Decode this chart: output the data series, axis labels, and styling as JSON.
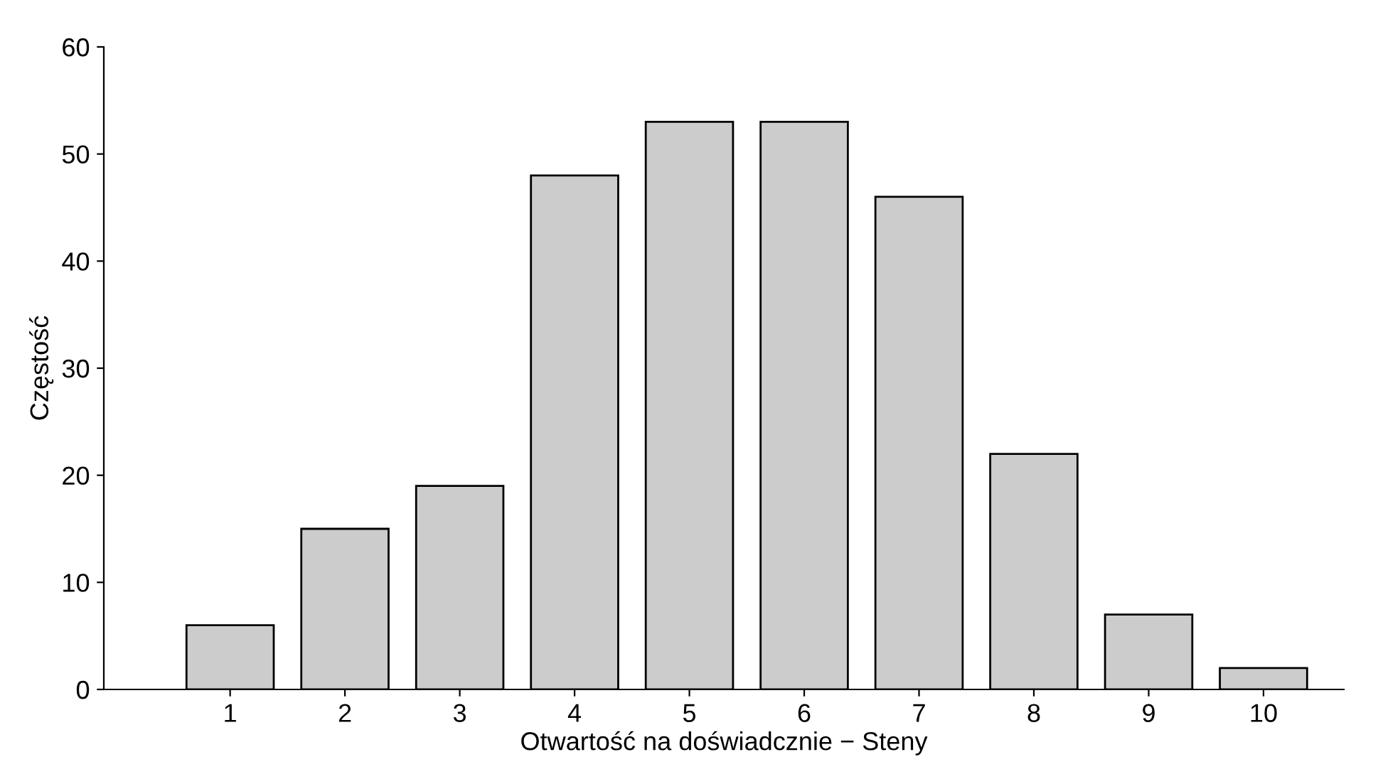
{
  "chart_data": {
    "type": "bar",
    "xlabel": "Otwartość na doświadcznie − Steny",
    "ylabel": "Częstość",
    "categories": [
      "1",
      "2",
      "3",
      "4",
      "5",
      "6",
      "7",
      "8",
      "9",
      "10"
    ],
    "values": [
      6,
      15,
      19,
      48,
      53,
      53,
      46,
      22,
      7,
      2
    ],
    "color": "#cccccc",
    "ylim": [
      0,
      60
    ],
    "yticks": [
      0,
      10,
      20,
      30,
      40,
      50,
      60
    ],
    "grid": false,
    "legend": false
  }
}
